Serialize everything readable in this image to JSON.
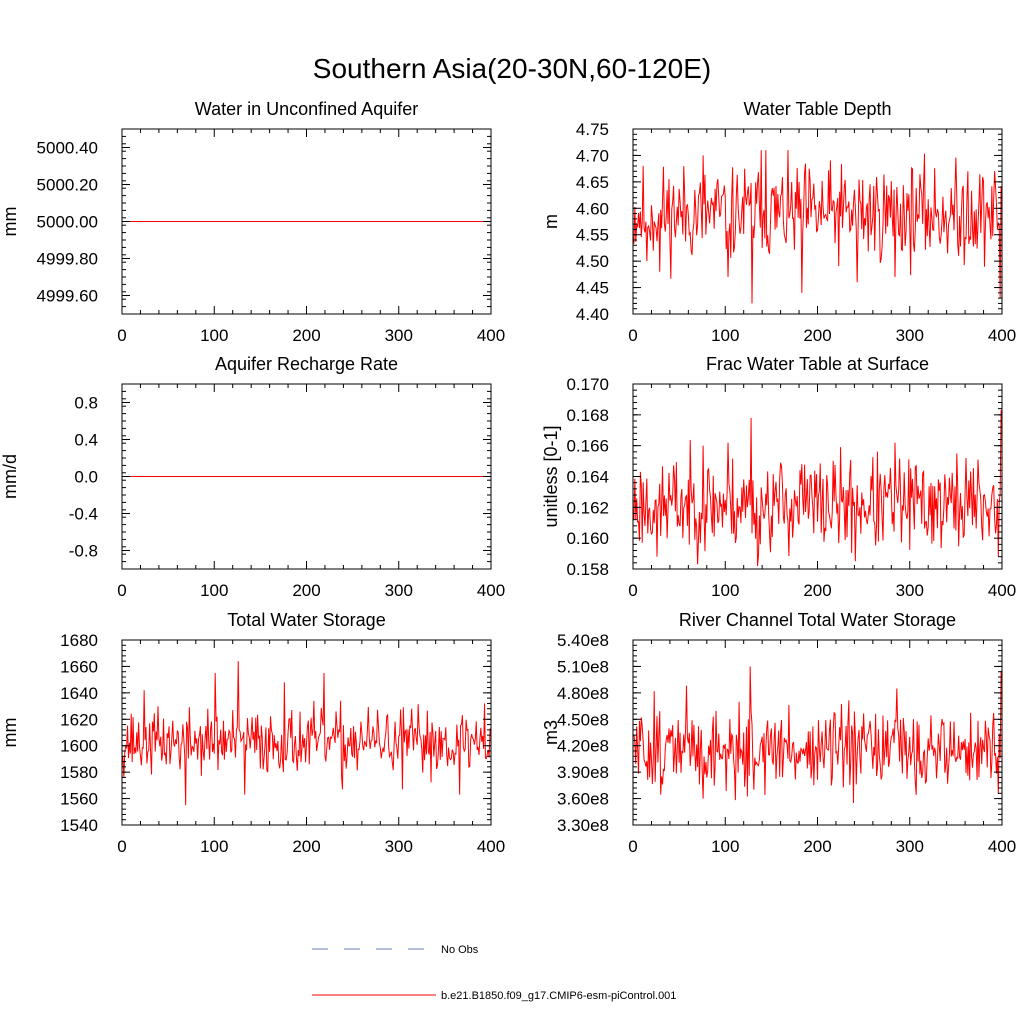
{
  "figure": {
    "title": "Southern Asia(20-30N,60-120E)",
    "legend": {
      "placement": "bottom-center",
      "entries": [
        {
          "label": "No Obs",
          "style": "dashed",
          "color": "#6f7fbf"
        },
        {
          "label": "b.e21.B1850.f09_g17.CMIP6-esm-piControl.001",
          "style": "solid",
          "color": "#ff0000"
        }
      ]
    }
  },
  "chart_data": [
    {
      "type": "line",
      "title": "Water in Unconfined Aquifer",
      "xlabel": "",
      "ylabel": "mm",
      "xlim": [
        0,
        400
      ],
      "ylim": [
        4999.5,
        5000.5
      ],
      "xticks": [
        0,
        100,
        200,
        300,
        400
      ],
      "yticks": [
        4999.6,
        4999.8,
        5000.0,
        5000.2,
        5000.4
      ],
      "ytick_labels": [
        "4999.60",
        "4999.80",
        "5000.00",
        "5000.20",
        "5000.40"
      ],
      "series": [
        {
          "name": "b.e21.B1850.f09_g17.CMIP6-esm-piControl.001",
          "color": "#ff0000",
          "kind": "constant",
          "value": 5000.0
        }
      ]
    },
    {
      "type": "line",
      "title": "Water Table Depth",
      "xlabel": "",
      "ylabel": "m",
      "xlim": [
        0,
        400
      ],
      "ylim": [
        4.4,
        4.75
      ],
      "xticks": [
        0,
        100,
        200,
        300,
        400
      ],
      "yticks": [
        4.4,
        4.45,
        4.5,
        4.55,
        4.6,
        4.65,
        4.7,
        4.75
      ],
      "ytick_labels": [
        "4.40",
        "4.45",
        "4.50",
        "4.55",
        "4.60",
        "4.65",
        "4.70",
        "4.75"
      ],
      "series": [
        {
          "name": "b.e21.B1850.f09_g17.CMIP6-esm-piControl.001",
          "color": "#ff0000",
          "kind": "noisy",
          "n": 399,
          "mean": 4.59,
          "amplitude": 0.045,
          "min": 4.42,
          "max": 4.71,
          "seed": 11,
          "peaks": [
            [
              14,
              4.5
            ],
            [
              28,
              4.48
            ],
            [
              75,
              4.7
            ],
            [
              102,
              4.47
            ],
            [
              128,
              4.42
            ],
            [
              138,
              4.71
            ],
            [
              143,
              4.71
            ],
            [
              182,
              4.44
            ],
            [
              242,
              4.46
            ],
            [
              283,
              4.47
            ],
            [
              352,
              4.51
            ],
            [
              362,
              4.67
            ],
            [
              397,
              4.43
            ]
          ]
        }
      ]
    },
    {
      "type": "line",
      "title": "Aquifer Recharge Rate",
      "xlabel": "",
      "ylabel": "mm/d",
      "xlim": [
        0,
        400
      ],
      "ylim": [
        -1.0,
        1.0
      ],
      "xticks": [
        0,
        100,
        200,
        300,
        400
      ],
      "yticks": [
        -0.8,
        -0.4,
        0.0,
        0.4,
        0.8
      ],
      "ytick_labels": [
        "-0.8",
        "-0.4",
        "0.0",
        "0.4",
        "0.8"
      ],
      "series": [
        {
          "name": "b.e21.B1850.f09_g17.CMIP6-esm-piControl.001",
          "color": "#ff0000",
          "kind": "constant",
          "value": 0.0
        }
      ]
    },
    {
      "type": "line",
      "title": "Frac Water Table at Surface",
      "xlabel": "",
      "ylabel": "unitless [0-1]",
      "xlim": [
        0,
        400
      ],
      "ylim": [
        0.158,
        0.17
      ],
      "xticks": [
        0,
        100,
        200,
        300,
        400
      ],
      "yticks": [
        0.158,
        0.16,
        0.162,
        0.164,
        0.166,
        0.168,
        0.17
      ],
      "ytick_labels": [
        "0.158",
        "0.160",
        "0.162",
        "0.164",
        "0.166",
        "0.168",
        "0.170"
      ],
      "series": [
        {
          "name": "b.e21.B1850.f09_g17.CMIP6-esm-piControl.001",
          "color": "#ff0000",
          "kind": "noisy",
          "n": 399,
          "mean": 0.1622,
          "amplitude": 0.0015,
          "min": 0.1582,
          "max": 0.1683,
          "seed": 23,
          "peaks": [
            [
              25,
              0.1588
            ],
            [
              75,
              0.166
            ],
            [
              102,
              0.1662
            ],
            [
              127,
              0.1678
            ],
            [
              134,
              0.1582
            ],
            [
              182,
              0.1648
            ],
            [
              240,
              0.1585
            ],
            [
              283,
              0.1662
            ],
            [
              360,
              0.1652
            ],
            [
              395,
              0.1588
            ],
            [
              398,
              0.1683
            ]
          ]
        }
      ]
    },
    {
      "type": "line",
      "title": "Total Water Storage",
      "xlabel": "",
      "ylabel": "mm",
      "xlim": [
        0,
        400
      ],
      "ylim": [
        1540,
        1680
      ],
      "xticks": [
        0,
        100,
        200,
        300,
        400
      ],
      "yticks": [
        1540,
        1560,
        1580,
        1600,
        1620,
        1640,
        1660,
        1680
      ],
      "ytick_labels": [
        "1540",
        "1560",
        "1580",
        "1600",
        "1620",
        "1640",
        "1660",
        "1680"
      ],
      "series": [
        {
          "name": "b.e21.B1850.f09_g17.CMIP6-esm-piControl.001",
          "color": "#ff0000",
          "kind": "noisy",
          "n": 399,
          "mean": 1603,
          "amplitude": 12,
          "min": 1555,
          "max": 1664,
          "seed": 37,
          "peaks": [
            [
              23,
              1642
            ],
            [
              68,
              1555
            ],
            [
              100,
              1655
            ],
            [
              125,
              1664
            ],
            [
              132,
              1563
            ],
            [
              175,
              1648
            ],
            [
              218,
              1655
            ],
            [
              238,
              1567
            ],
            [
              303,
              1567
            ],
            [
              365,
              1563
            ],
            [
              392,
              1632
            ]
          ]
        }
      ]
    },
    {
      "type": "line",
      "title": "River Channel Total Water Storage",
      "xlabel": "",
      "ylabel": "m3",
      "xlim": [
        0,
        400
      ],
      "ylim": [
        330000000,
        540000000
      ],
      "xticks": [
        0,
        100,
        200,
        300,
        400
      ],
      "yticks": [
        330000000,
        360000000,
        390000000,
        420000000,
        450000000,
        480000000,
        510000000,
        540000000
      ],
      "ytick_labels": [
        "3.30e8",
        "3.60e8",
        "3.90e8",
        "4.20e8",
        "4.50e8",
        "4.80e8",
        "5.10e8",
        "5.40e8"
      ],
      "series": [
        {
          "name": "b.e21.B1850.f09_g17.CMIP6-esm-piControl.001",
          "color": "#ff0000",
          "kind": "noisy",
          "n": 399,
          "mean": 415000000,
          "amplitude": 22000000,
          "min": 355000000,
          "max": 512000000,
          "seed": 51,
          "peaks": [
            [
              22,
              482000000
            ],
            [
              57,
              488000000
            ],
            [
              75,
              360000000
            ],
            [
              126,
              510000000
            ],
            [
              130,
              370000000
            ],
            [
              238,
              355000000
            ],
            [
              285,
              485000000
            ],
            [
              395,
              365000000
            ],
            [
              398,
              505000000
            ]
          ]
        }
      ]
    }
  ]
}
